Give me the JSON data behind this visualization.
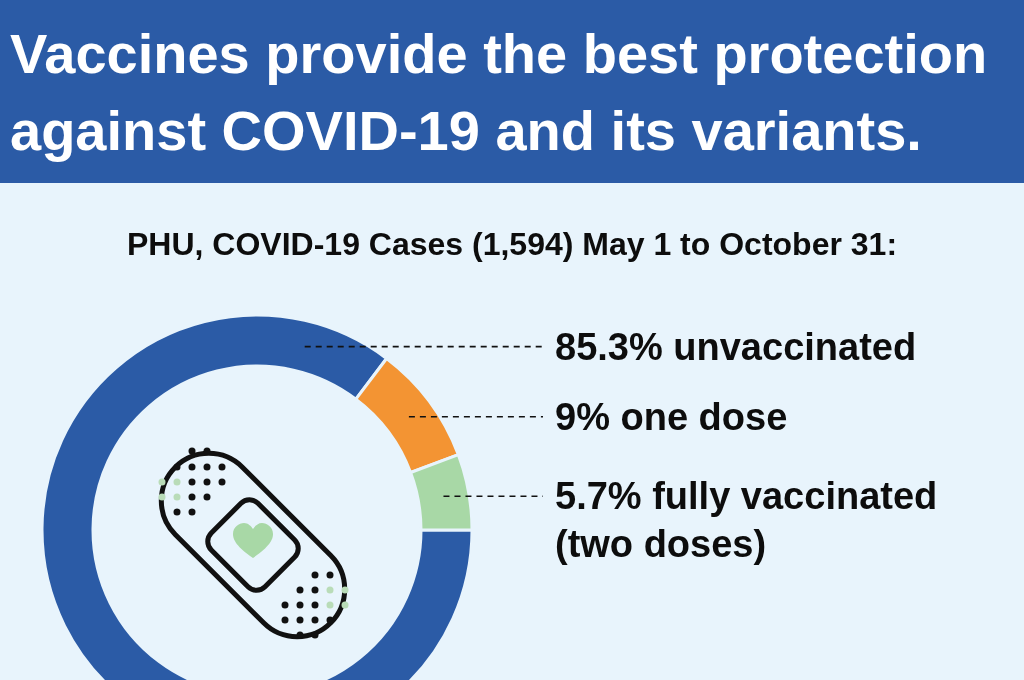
{
  "chart_data": {
    "type": "donut",
    "title": "Vaccines provide the best protection against COVID-19 and its variants.",
    "subtitle": "PHU, COVID-19 Cases (1,594) May 1 to October 31:",
    "categories": [
      "unvaccinated",
      "one dose",
      "fully vaccinated (two doses)"
    ],
    "values": [
      85.3,
      9,
      5.7
    ],
    "value_labels": [
      "85.3%",
      "9%",
      "5.7%"
    ],
    "colors": [
      "#2b5ba6",
      "#f39433",
      "#a8d8a6"
    ]
  }
}
